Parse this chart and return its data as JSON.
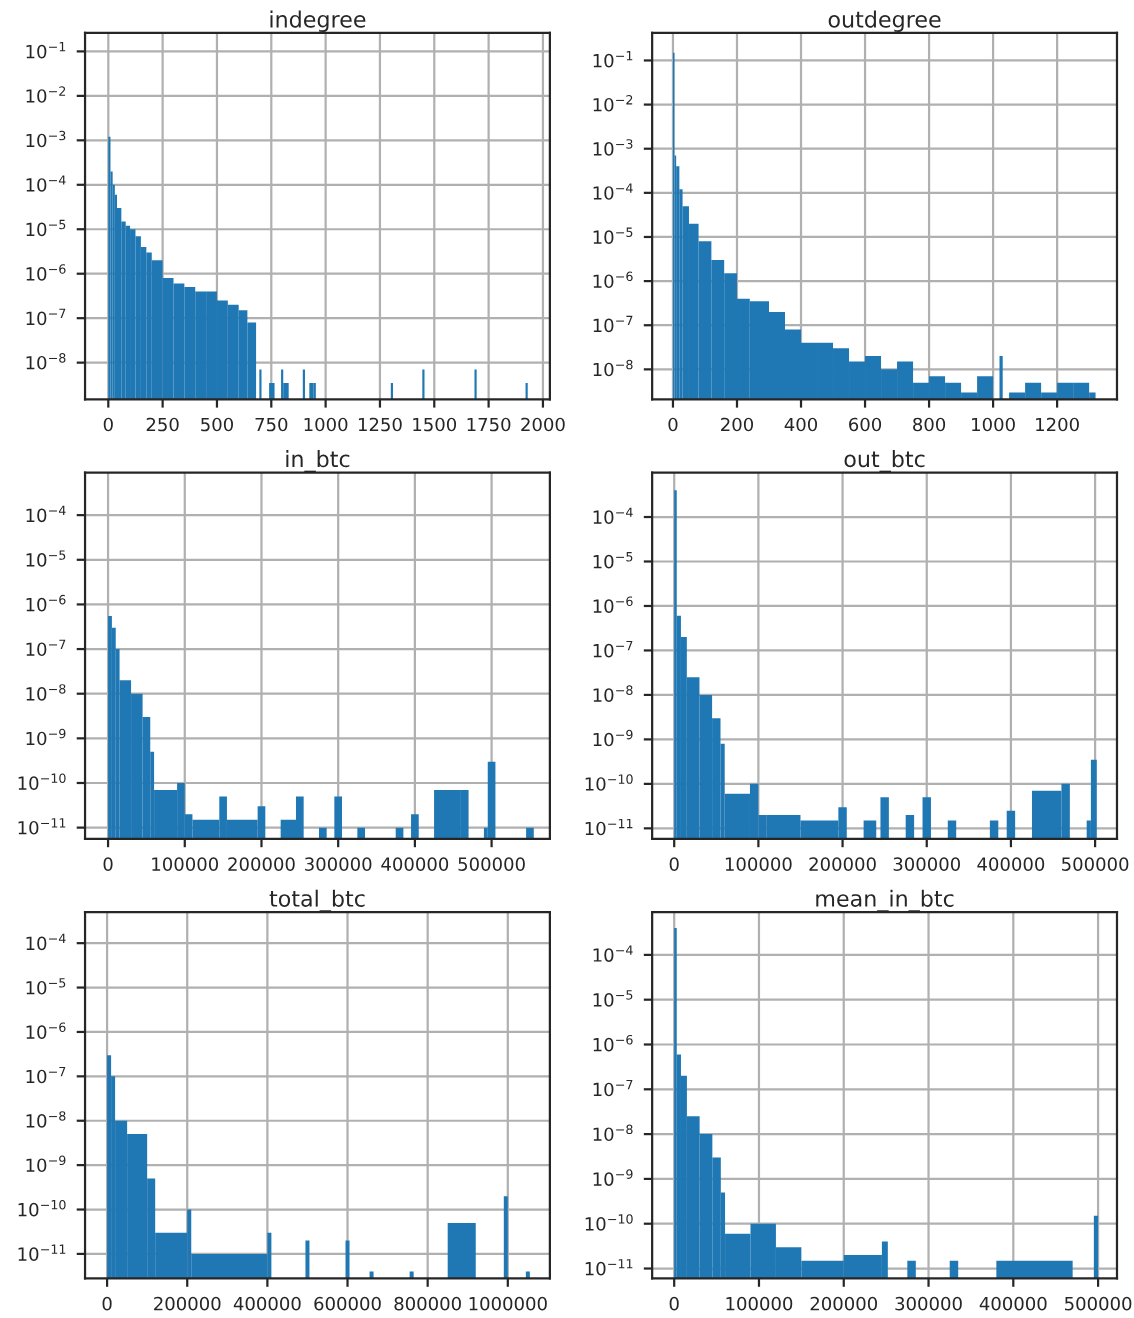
{
  "chart_data": [
    {
      "type": "histogram",
      "title": "indegree",
      "color": "#1f77b4",
      "log": true,
      "grid": true,
      "bins": [
        0,
        10,
        20,
        30,
        40,
        60,
        80,
        100,
        125,
        150,
        175,
        200,
        250,
        300,
        350,
        400,
        450,
        500,
        550,
        600,
        640,
        680,
        695,
        705,
        740,
        765,
        795,
        805,
        830,
        895,
        905,
        925,
        945,
        955,
        1300,
        1310,
        1445,
        1455,
        1685,
        1695,
        1920,
        1930
      ],
      "values": [
        0.0012,
        0.0002,
        0.0001,
        6e-05,
        3e-05,
        1.5e-05,
        1.2e-05,
        1e-05,
        7e-06,
        4e-06,
        3e-06,
        2e-06,
        8e-07,
        6e-07,
        5e-07,
        4e-07,
        4e-07,
        2.5e-07,
        2e-07,
        1.5e-07,
        8e-08,
        null,
        7e-09,
        null,
        3.5e-09,
        null,
        7e-09,
        3.5e-09,
        null,
        7e-09,
        null,
        3.5e-09,
        3.5e-09,
        null,
        3.5e-09,
        null,
        7e-09,
        null,
        7e-09,
        null,
        3.5e-09
      ],
      "xlim": [
        -107,
        2032
      ],
      "xticks": [
        0,
        250,
        500,
        750,
        1000,
        1250,
        1500,
        1750,
        2000
      ],
      "ylim": [
        1.5e-09,
        0.26
      ],
      "yticks": [
        {
          "value": 1e-08,
          "label": "10$^{−8}$"
        },
        {
          "value": 1e-07,
          "label": "10$^{−7}$"
        },
        {
          "value": 1e-06,
          "label": "10$^{−6}$"
        },
        {
          "value": 1e-05,
          "label": "10$^{−5}$"
        },
        {
          "value": 0.0001,
          "label": "10$^{−4}$"
        },
        {
          "value": 0.001,
          "label": "10$^{−3}$"
        },
        {
          "value": 0.01,
          "label": "10$^{−2}$"
        },
        {
          "value": 0.1,
          "label": "10$^{−1}$"
        }
      ]
    },
    {
      "type": "histogram",
      "title": "outdegree",
      "color": "#1f77b4",
      "log": true,
      "grid": true,
      "bins": [
        0,
        5,
        10,
        20,
        30,
        50,
        80,
        120,
        160,
        200,
        240,
        300,
        350,
        400,
        450,
        500,
        550,
        600,
        650,
        700,
        750,
        800,
        850,
        900,
        950,
        1000,
        1020,
        1030,
        1050,
        1100,
        1150,
        1200,
        1250,
        1300,
        1320
      ],
      "values": [
        0.15,
        0.0007,
        0.0004,
        0.00012,
        5e-05,
        2e-05,
        8e-06,
        3e-06,
        1.5e-06,
        4e-07,
        3.5e-07,
        2e-07,
        8e-08,
        4e-08,
        4e-08,
        3e-08,
        1.5e-08,
        2e-08,
        1e-08,
        1.5e-08,
        5e-09,
        7e-09,
        5e-09,
        3e-09,
        7e-09,
        null,
        2e-08,
        null,
        3e-09,
        5e-09,
        3e-09,
        5e-09,
        5e-09,
        3e-09
      ],
      "xlim": [
        -65,
        1387
      ],
      "xticks": [
        0,
        200,
        400,
        600,
        800,
        1000,
        1200
      ],
      "ylim": [
        2.1e-09,
        0.42
      ],
      "yticks": [
        {
          "value": 1e-08,
          "label": "10$^{−8}$"
        },
        {
          "value": 1e-07,
          "label": "10$^{−7}$"
        },
        {
          "value": 1e-06,
          "label": "10$^{−6}$"
        },
        {
          "value": 1e-05,
          "label": "10$^{−5}$"
        },
        {
          "value": 0.0001,
          "label": "10$^{−4}$"
        },
        {
          "value": 0.001,
          "label": "10$^{−3}$"
        },
        {
          "value": 0.01,
          "label": "10$^{−2}$"
        },
        {
          "value": 0.1,
          "label": "10$^{−1}$"
        }
      ]
    },
    {
      "type": "histogram",
      "title": "in_btc",
      "color": "#1f77b4",
      "log": true,
      "grid": true,
      "bins": [
        0,
        5000,
        10000,
        15000,
        30000,
        45000,
        55000,
        60000,
        90000,
        100000,
        110000,
        145000,
        155000,
        195000,
        205000,
        225000,
        245000,
        255000,
        275000,
        285000,
        295000,
        305000,
        325000,
        335000,
        375000,
        385000,
        395000,
        405000,
        425000,
        460000,
        470000,
        490000,
        495000,
        505000,
        545000,
        555000
      ],
      "values": [
        5.5e-07,
        3e-07,
        1e-07,
        2e-08,
        1e-08,
        3e-09,
        5e-10,
        7e-11,
        1e-10,
        2e-11,
        1.5e-11,
        5e-11,
        1.5e-11,
        3e-11,
        null,
        1.5e-11,
        5e-11,
        null,
        1e-11,
        null,
        5e-11,
        null,
        1e-11,
        null,
        1e-11,
        null,
        2e-11,
        null,
        7e-11,
        7e-11,
        null,
        1e-11,
        3e-10,
        null,
        1e-11
      ],
      "xlim": [
        -30000,
        576000
      ],
      "xticks": [
        0,
        100000,
        200000,
        300000,
        400000,
        500000
      ],
      "ylim": [
        5.6e-12,
        0.0009
      ],
      "yticks": [
        {
          "value": 1e-11,
          "label": "10$^{−11}$"
        },
        {
          "value": 1e-10,
          "label": "10$^{−10}$"
        },
        {
          "value": 1e-09,
          "label": "10$^{−9}$"
        },
        {
          "value": 1e-08,
          "label": "10$^{−8}$"
        },
        {
          "value": 1e-07,
          "label": "10$^{−7}$"
        },
        {
          "value": 1e-06,
          "label": "10$^{−6}$"
        },
        {
          "value": 1e-05,
          "label": "10$^{−5}$"
        },
        {
          "value": 0.0001,
          "label": "10$^{−4}$"
        }
      ]
    },
    {
      "type": "histogram",
      "title": "out_btc",
      "color": "#1f77b4",
      "log": true,
      "grid": true,
      "bins": [
        0,
        3000,
        8000,
        15000,
        30000,
        45000,
        55000,
        60000,
        90000,
        100000,
        110000,
        150000,
        195000,
        205000,
        225000,
        240000,
        245000,
        255000,
        275000,
        285000,
        295000,
        305000,
        325000,
        335000,
        375000,
        385000,
        395000,
        405000,
        425000,
        460000,
        470000,
        490000,
        495000,
        502000
      ],
      "values": [
        0.0004,
        6e-07,
        2e-07,
        2.5e-08,
        1e-08,
        3e-09,
        8e-10,
        6e-11,
        1e-10,
        2e-11,
        2e-11,
        1.5e-11,
        3e-11,
        null,
        1.5e-11,
        null,
        5e-11,
        null,
        2e-11,
        null,
        5e-11,
        null,
        1.5e-11,
        null,
        1.5e-11,
        null,
        2.5e-11,
        null,
        7e-11,
        1e-10,
        null,
        1.5e-11,
        3.5e-10
      ],
      "xlim": [
        -26200,
        526000
      ],
      "xticks": [
        0,
        100000,
        200000,
        300000,
        400000,
        500000
      ],
      "ylim": [
        5.8e-12,
        0.001
      ],
      "yticks": [
        {
          "value": 1e-11,
          "label": "10$^{−11}$"
        },
        {
          "value": 1e-10,
          "label": "10$^{−10}$"
        },
        {
          "value": 1e-09,
          "label": "10$^{−9}$"
        },
        {
          "value": 1e-08,
          "label": "10$^{−8}$"
        },
        {
          "value": 1e-07,
          "label": "10$^{−7}$"
        },
        {
          "value": 1e-06,
          "label": "10$^{−6}$"
        },
        {
          "value": 1e-05,
          "label": "10$^{−5}$"
        },
        {
          "value": 0.0001,
          "label": "10$^{−4}$"
        }
      ]
    },
    {
      "type": "histogram",
      "title": "total_btc",
      "color": "#1f77b4",
      "log": true,
      "grid": true,
      "bins": [
        0,
        10000,
        20000,
        50000,
        100000,
        120000,
        200000,
        210000,
        400000,
        410000,
        495000,
        505000,
        595000,
        605000,
        655000,
        665000,
        755000,
        765000,
        850000,
        920000,
        990000,
        1000000,
        1045000,
        1055000
      ],
      "values": [
        3e-07,
        1e-07,
        1e-08,
        5e-09,
        5e-10,
        3e-11,
        1e-10,
        1e-11,
        3e-11,
        null,
        2e-11,
        null,
        2e-11,
        null,
        4e-12,
        null,
        4e-12,
        null,
        5e-11,
        null,
        2e-10,
        null,
        4e-12
      ],
      "xlim": [
        -55000,
        1105000
      ],
      "xticks": [
        0,
        200000,
        400000,
        600000,
        800000,
        1000000
      ],
      "ylim": [
        2.8e-12,
        0.0005
      ],
      "yticks": [
        {
          "value": 1e-11,
          "label": "10$^{−11}$"
        },
        {
          "value": 1e-10,
          "label": "10$^{−10}$"
        },
        {
          "value": 1e-09,
          "label": "10$^{−9}$"
        },
        {
          "value": 1e-08,
          "label": "10$^{−8}$"
        },
        {
          "value": 1e-07,
          "label": "10$^{−7}$"
        },
        {
          "value": 1e-06,
          "label": "10$^{−6}$"
        },
        {
          "value": 1e-05,
          "label": "10$^{−5}$"
        },
        {
          "value": 0.0001,
          "label": "10$^{−4}$"
        }
      ]
    },
    {
      "type": "histogram",
      "title": "mean_in_btc",
      "color": "#1f77b4",
      "log": true,
      "grid": true,
      "bins": [
        0,
        3000,
        8000,
        15000,
        30000,
        45000,
        55000,
        60000,
        90000,
        120000,
        150000,
        200000,
        245000,
        252000,
        275000,
        285000,
        325000,
        335000,
        380000,
        470000,
        495000,
        500000
      ],
      "values": [
        0.0004,
        6e-07,
        2e-07,
        2.5e-08,
        1e-08,
        3e-09,
        5e-10,
        6e-11,
        1e-10,
        3e-11,
        1.5e-11,
        2e-11,
        4e-11,
        null,
        1.5e-11,
        null,
        1.5e-11,
        null,
        1.5e-11,
        null,
        1.5e-10
      ],
      "xlim": [
        -26000,
        522300
      ],
      "xticks": [
        0,
        100000,
        200000,
        300000,
        400000,
        500000
      ],
      "ylim": [
        6e-12,
        0.0009
      ],
      "yticks": [
        {
          "value": 1e-11,
          "label": "10$^{−11}$"
        },
        {
          "value": 1e-10,
          "label": "10$^{−10}$"
        },
        {
          "value": 1e-09,
          "label": "10$^{−9}$"
        },
        {
          "value": 1e-08,
          "label": "10$^{−8}$"
        },
        {
          "value": 1e-07,
          "label": "10$^{−7}$"
        },
        {
          "value": 1e-06,
          "label": "10$^{−6}$"
        },
        {
          "value": 1e-05,
          "label": "10$^{−5}$"
        },
        {
          "value": 0.0001,
          "label": "10$^{−4}$"
        }
      ]
    }
  ]
}
